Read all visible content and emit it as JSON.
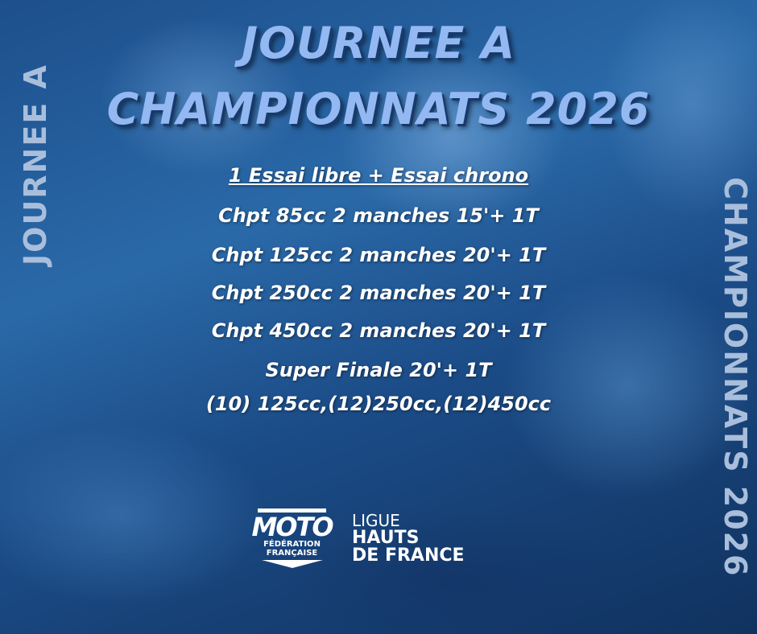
{
  "title": {
    "line1": "JOURNEE A",
    "line2": "CHAMPIONNATS 2026"
  },
  "side_left": "JOURNEE A",
  "side_right": "CHAMPIONNATS 2026",
  "schedule": [
    "1 Essai libre + Essai chrono",
    "Chpt 85cc 2 manches 15'+ 1T",
    "Chpt 125cc 2 manches 20'+ 1T",
    "Chpt 250cc 2 manches 20'+ 1T",
    "Chpt 450cc 2 manches 20'+ 1T",
    "Super Finale 20'+ 1T",
    "(10) 125cc,(12)250cc,(12)450cc"
  ],
  "logo": {
    "moto": "MOTO",
    "federation_line1": "FÉDÉRATION",
    "federation_line2": "FRANÇAISE",
    "ligue": "LIGUE",
    "region_line1": "HAUTS",
    "region_line2": "DE FRANCE"
  },
  "colors": {
    "title": "#93b8f2",
    "side_text": "#a9bedb",
    "background": "#1d4f8c"
  }
}
